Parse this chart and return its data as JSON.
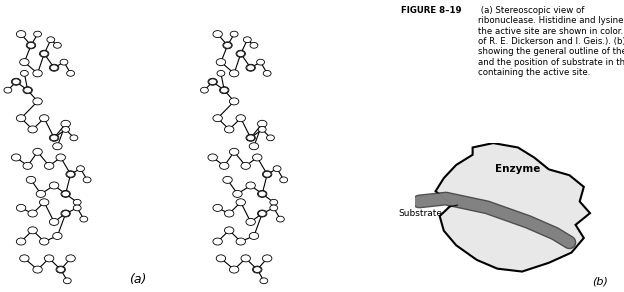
{
  "figure_label": "FIGURE 8–19",
  "caption_bold": "FIGURE 8–19",
  "caption_text": " (a) Stereoscopic view of\nribonuclease. Histidine and lysine residues of\nthe active site are shown in color. (Courtesy\nof R. E. Dickerson and I. Geis.). (b) Diagram\nshowing the general outline of the enzyme\nand the position of substrate in the cleft\ncontaining the active site.",
  "label_a": "(a)",
  "label_b": "(b)",
  "enzyme_label": "Enzyme",
  "substrate_label": "Substrate",
  "bg_color": "#ffffff",
  "enzyme_fill": "#e8e8e8",
  "enzyme_edge": "#000000",
  "substrate_fill": "#888888",
  "substrate_edge": "#333333",
  "text_color": "#000000"
}
